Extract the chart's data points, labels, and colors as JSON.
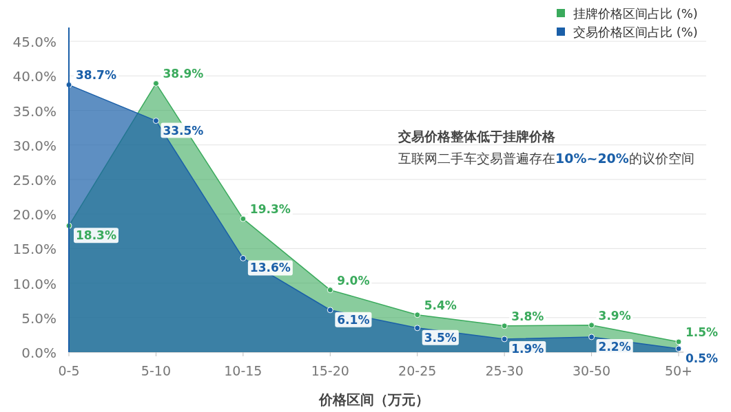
{
  "chart_data": {
    "type": "area",
    "xlabel": "价格区间（万元）",
    "categories": [
      "0-5",
      "5-10",
      "10-15",
      "15-20",
      "20-25",
      "25-30",
      "30-50",
      "50+"
    ],
    "series": [
      {
        "name": "挂牌价格区间占比 (%)",
        "color": "#3aaa5c",
        "values": [
          18.3,
          38.9,
          19.3,
          9.0,
          5.4,
          3.8,
          3.9,
          1.5
        ],
        "value_labels": [
          "18.3%",
          "38.9%",
          "19.3%",
          "9.0%",
          "5.4%",
          "3.8%",
          "3.9%",
          "1.5%"
        ]
      },
      {
        "name": "交易价格区间占比 (%)",
        "color": "#1a5fa8",
        "values": [
          38.7,
          33.5,
          13.6,
          6.1,
          3.5,
          1.9,
          2.2,
          0.5
        ],
        "value_labels": [
          "38.7%",
          "33.5%",
          "13.6%",
          "6.1%",
          "3.5%",
          "1.9%",
          "2.2%",
          "0.5%"
        ]
      }
    ],
    "ylim": [
      0,
      47
    ],
    "yticks": [
      {
        "value": 0,
        "label": "0.0%"
      },
      {
        "value": 5,
        "label": "5.0%"
      },
      {
        "value": 10,
        "label": "10.0%"
      },
      {
        "value": 15,
        "label": "15.0%"
      },
      {
        "value": 20,
        "label": "20.0%"
      },
      {
        "value": 25,
        "label": "25.0%"
      },
      {
        "value": 30,
        "label": "30.0%"
      },
      {
        "value": 35,
        "label": "35.0%"
      },
      {
        "value": 40,
        "label": "40.0%"
      },
      {
        "value": 45,
        "label": "45.0%"
      }
    ],
    "grid": "y",
    "legend": "top right",
    "marker": "circle",
    "annotations": [
      "**交易价格整体低于挂牌价格**",
      "互联网二手车交易普遍存在**10%~20%**的议价空间"
    ]
  }
}
